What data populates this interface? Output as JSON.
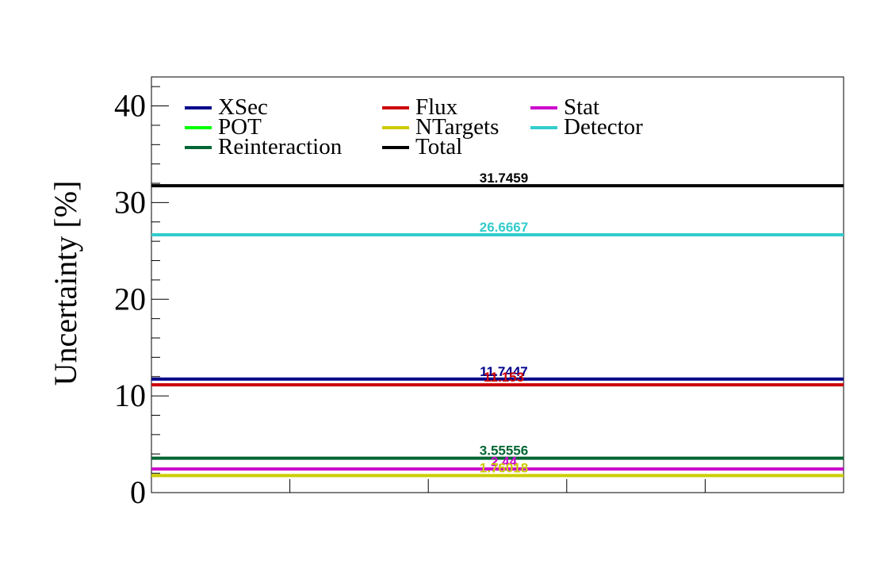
{
  "chart_data": {
    "type": "line",
    "ylabel": "Uncertainty [%]",
    "ylim": [
      0,
      43
    ],
    "yticks": [
      0,
      10,
      20,
      30,
      40
    ],
    "xticks_count": 6,
    "grid": false,
    "legend_position": "top-left",
    "series": [
      {
        "name": "XSec",
        "value": 11.7447,
        "value_label": "11.7447",
        "color": "#00008b"
      },
      {
        "name": "Flux",
        "value": 11.153,
        "value_label": "11.153",
        "color": "#cc0000"
      },
      {
        "name": "Stat",
        "value": 2.44,
        "value_label": "2.44",
        "color": "#cc00cc"
      },
      {
        "name": "POT",
        "value": 0,
        "value_label": "",
        "color": "#00ff00"
      },
      {
        "name": "NTargets",
        "value": 1.76018,
        "value_label": "1.76018",
        "color": "#cccc00"
      },
      {
        "name": "Detector",
        "value": 26.6667,
        "value_label": "26.6667",
        "color": "#33cccc"
      },
      {
        "name": "Reinteraction",
        "value": 3.55556,
        "value_label": "3.55556",
        "color": "#006633"
      },
      {
        "name": "Total",
        "value": 31.7459,
        "value_label": "31.7459",
        "color": "#000000"
      }
    ]
  }
}
